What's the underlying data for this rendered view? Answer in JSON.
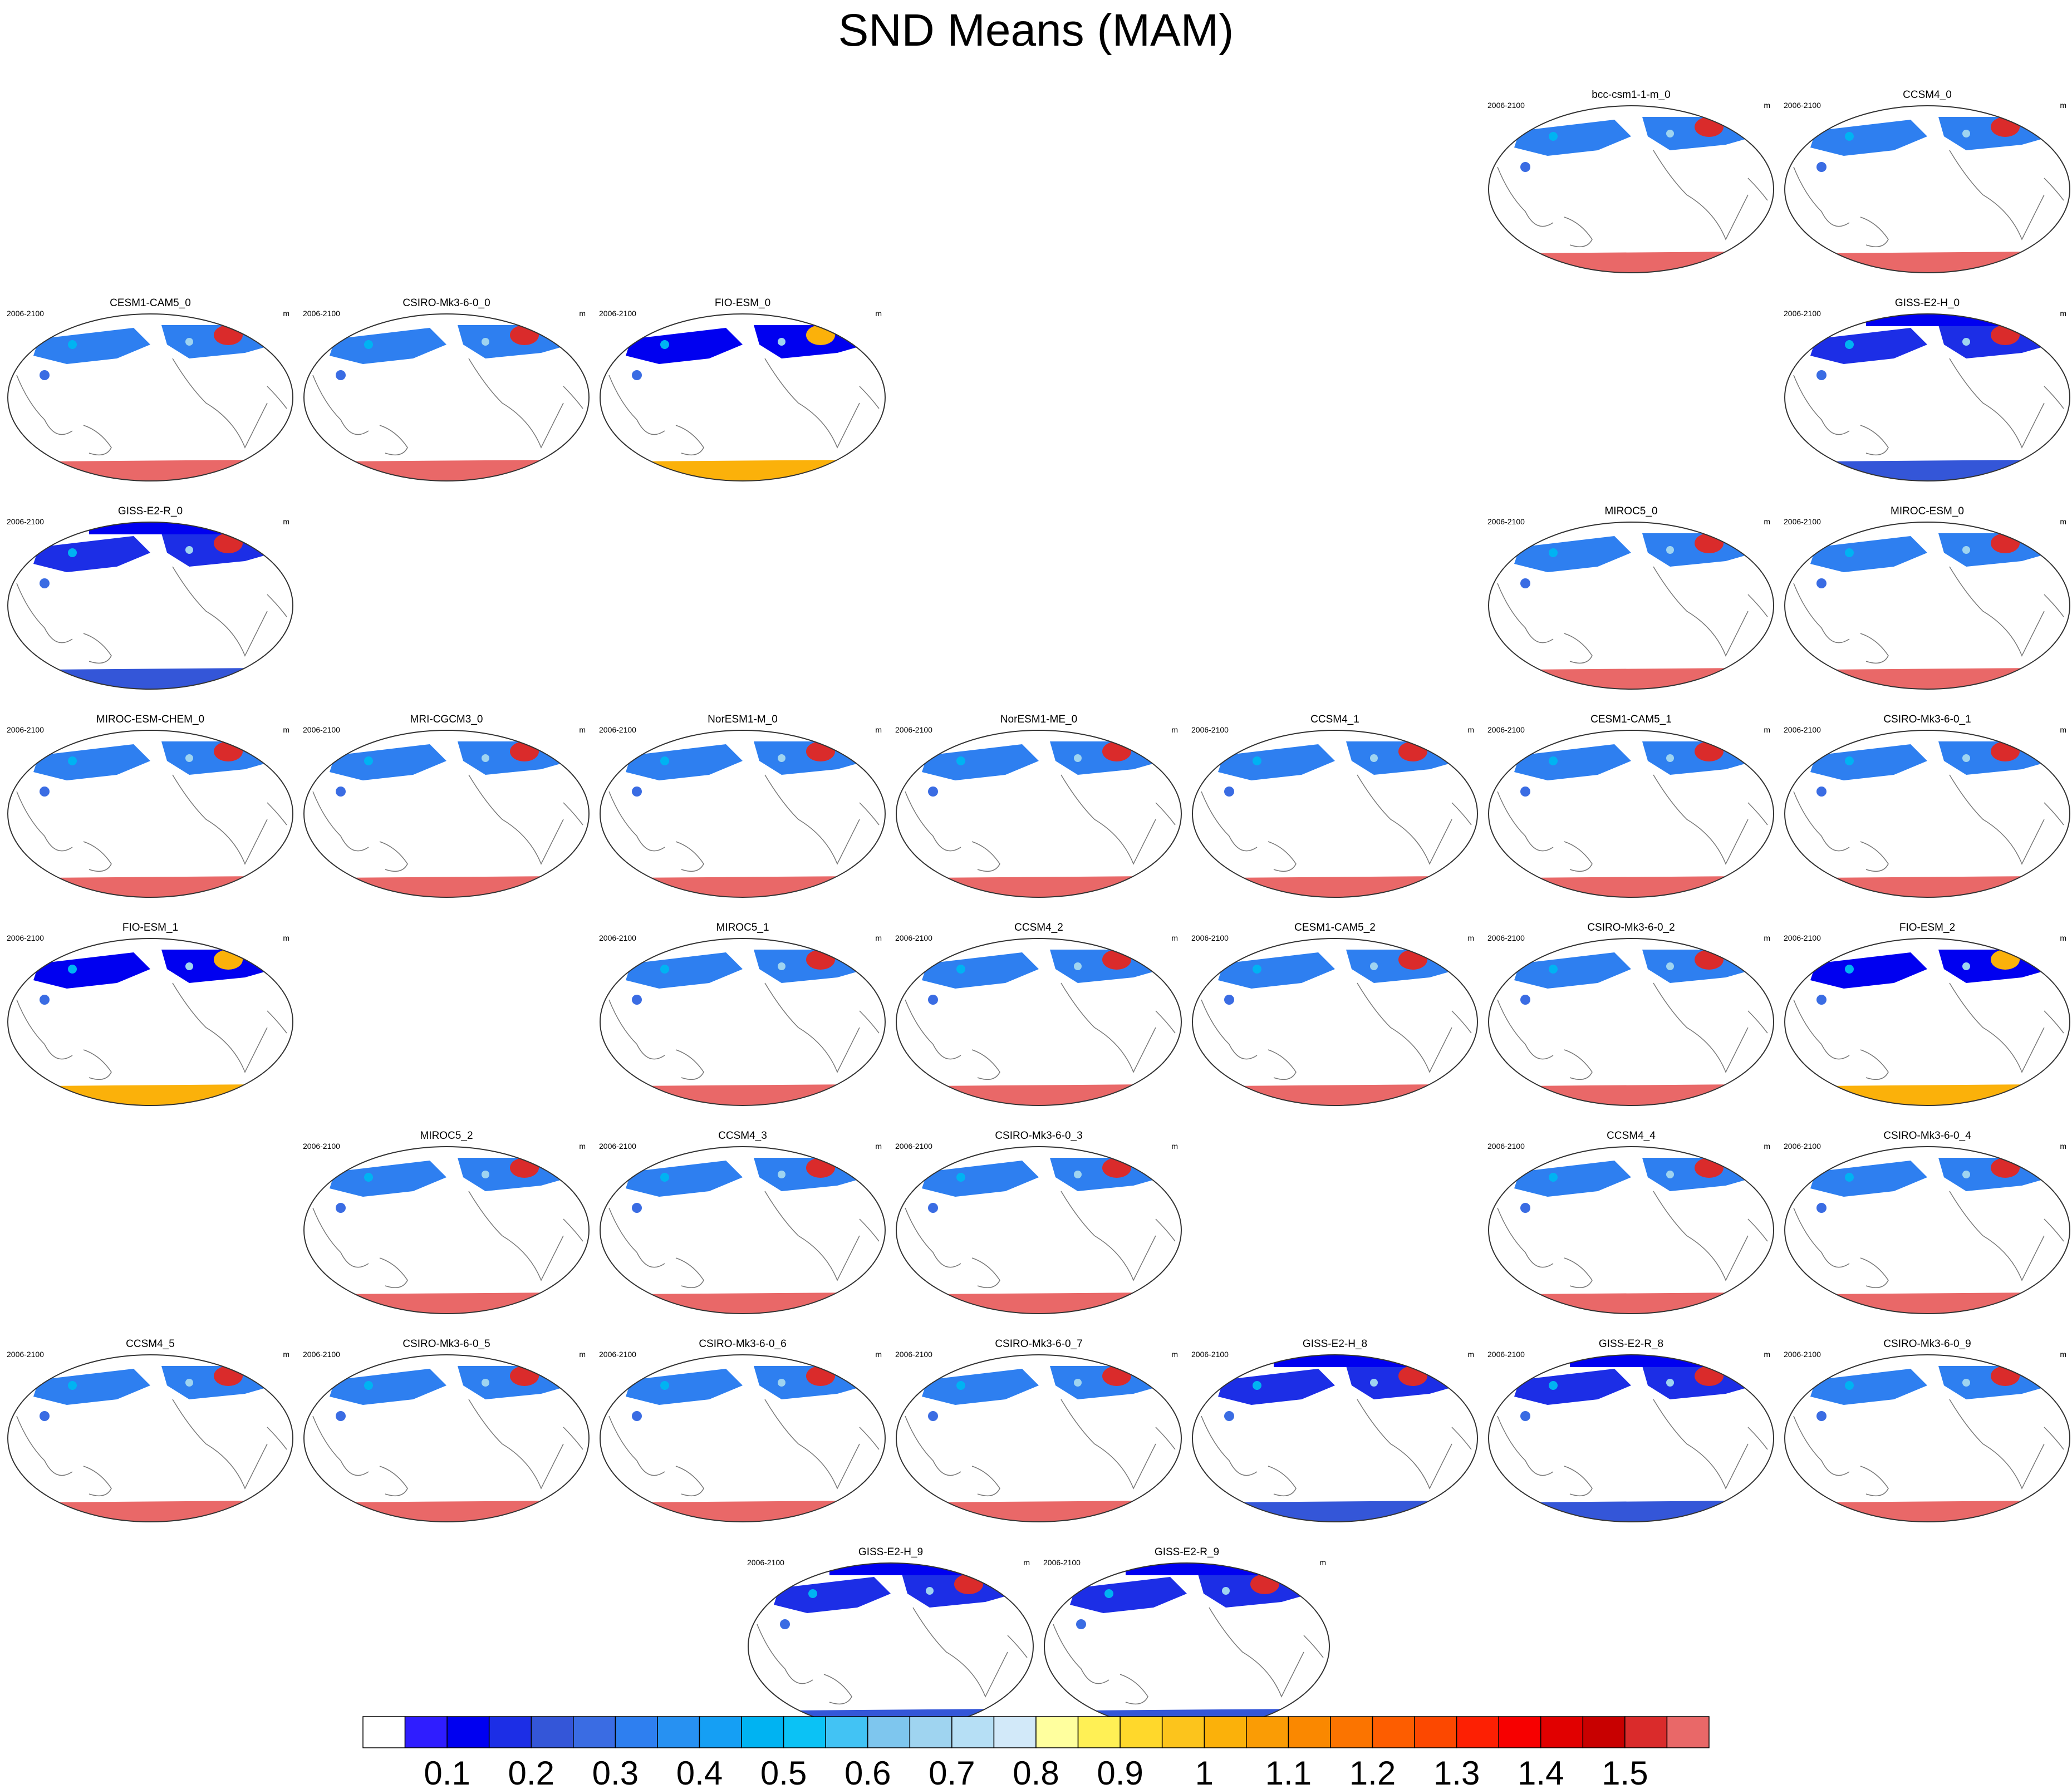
{
  "title": "SND Means (MAM)",
  "chart_data": {
    "type": "heatmap",
    "title": "SND Means (MAM)",
    "period_label": "2006-2100",
    "units_label": "m",
    "panels": [
      {
        "name": "bcc-csm1-1-m_0",
        "row": 0,
        "col": 5
      },
      {
        "name": "CCSM4_0",
        "row": 0,
        "col": 6
      },
      {
        "name": "CESM1-CAM5_0",
        "row": 1,
        "col": 0
      },
      {
        "name": "CSIRO-Mk3-6-0_0",
        "row": 1,
        "col": 1
      },
      {
        "name": "FIO-ESM_0",
        "row": 1,
        "col": 2
      },
      {
        "name": "GISS-E2-H_0",
        "row": 1,
        "col": 6
      },
      {
        "name": "GISS-E2-R_0",
        "row": 2,
        "col": 0
      },
      {
        "name": "MIROC5_0",
        "row": 2,
        "col": 5
      },
      {
        "name": "MIROC-ESM_0",
        "row": 2,
        "col": 6
      },
      {
        "name": "MIROC-ESM-CHEM_0",
        "row": 3,
        "col": 0
      },
      {
        "name": "MRI-CGCM3_0",
        "row": 3,
        "col": 1
      },
      {
        "name": "NorESM1-M_0",
        "row": 3,
        "col": 2
      },
      {
        "name": "NorESM1-ME_0",
        "row": 3,
        "col": 3
      },
      {
        "name": "CCSM4_1",
        "row": 3,
        "col": 4
      },
      {
        "name": "CESM1-CAM5_1",
        "row": 3,
        "col": 5
      },
      {
        "name": "CSIRO-Mk3-6-0_1",
        "row": 3,
        "col": 6
      },
      {
        "name": "FIO-ESM_1",
        "row": 4,
        "col": 0
      },
      {
        "name": "MIROC5_1",
        "row": 4,
        "col": 2
      },
      {
        "name": "CCSM4_2",
        "row": 4,
        "col": 3
      },
      {
        "name": "CESM1-CAM5_2",
        "row": 4,
        "col": 4
      },
      {
        "name": "CSIRO-Mk3-6-0_2",
        "row": 4,
        "col": 5
      },
      {
        "name": "FIO-ESM_2",
        "row": 4,
        "col": 6
      },
      {
        "name": "MIROC5_2",
        "row": 5,
        "col": 1
      },
      {
        "name": "CCSM4_3",
        "row": 5,
        "col": 2
      },
      {
        "name": "CSIRO-Mk3-6-0_3",
        "row": 5,
        "col": 3
      },
      {
        "name": "CCSM4_4",
        "row": 5,
        "col": 5
      },
      {
        "name": "CSIRO-Mk3-6-0_4",
        "row": 5,
        "col": 6
      },
      {
        "name": "CCSM4_5",
        "row": 6,
        "col": 0
      },
      {
        "name": "CSIRO-Mk3-6-0_5",
        "row": 6,
        "col": 1
      },
      {
        "name": "CSIRO-Mk3-6-0_6",
        "row": 6,
        "col": 2
      },
      {
        "name": "CSIRO-Mk3-6-0_7",
        "row": 6,
        "col": 3
      },
      {
        "name": "GISS-E2-H_8",
        "row": 6,
        "col": 4
      },
      {
        "name": "GISS-E2-R_8",
        "row": 6,
        "col": 5
      },
      {
        "name": "CSIRO-Mk3-6-0_9",
        "row": 6,
        "col": 6
      },
      {
        "name": "GISS-E2-H_9",
        "row": 7,
        "col": 2.5
      },
      {
        "name": "GISS-E2-R_9",
        "row": 7,
        "col": 3.5
      }
    ],
    "colorbar": {
      "colors": [
        "#ffffff",
        "#2f1dff",
        "#0000f0",
        "#1c2ee6",
        "#3456d8",
        "#3a6ce3",
        "#2e7ff0",
        "#2791f2",
        "#159ff4",
        "#00b3f2",
        "#0bc2f5",
        "#42c3f4",
        "#7ec6ee",
        "#9fd4f0",
        "#b6dff5",
        "#d2e9f9",
        "#ffff9e",
        "#fff055",
        "#ffd82b",
        "#fcc41c",
        "#fbb10a",
        "#fa9c05",
        "#fa8800",
        "#fb7400",
        "#fd5d00",
        "#fc4800",
        "#fd2003",
        "#f70000",
        "#e10000",
        "#c80000",
        "#da2b2b",
        "#e96868"
      ],
      "tick_labels": [
        "0.1",
        "0.2",
        "0.3",
        "0.4",
        "0.5",
        "0.6",
        "0.7",
        "0.8",
        "0.9",
        "1",
        "1.1",
        "1.2",
        "1.3",
        "1.4",
        "1.5"
      ]
    }
  }
}
